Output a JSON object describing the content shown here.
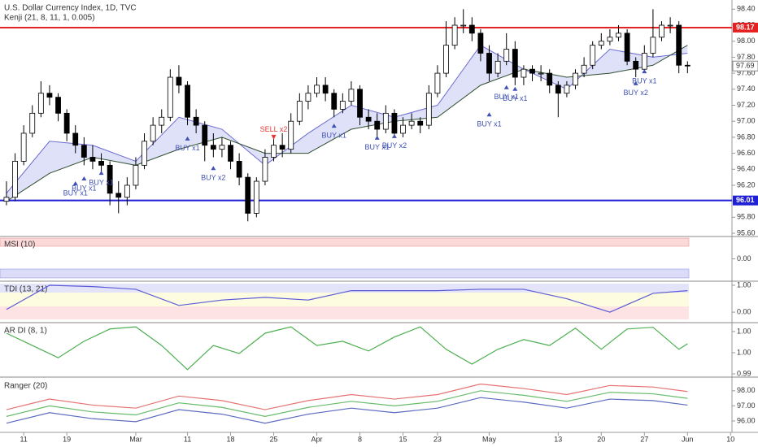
{
  "chart_data": {
    "type": "candlestick",
    "title": "U.S. Dollar Currency Index, 1D, TVC",
    "indicator": "Kenji (21, 8, 11, 1, 0.005)",
    "xlim": [
      -0.75,
      84.16
    ],
    "xticks": [
      {
        "value": 2,
        "label": "11"
      },
      {
        "value": 7,
        "label": "19"
      },
      {
        "value": 15,
        "label": "Mar"
      },
      {
        "value": 21,
        "label": "11"
      },
      {
        "value": 26,
        "label": "18"
      },
      {
        "value": 31,
        "label": "25"
      },
      {
        "value": 36,
        "label": "Apr"
      },
      {
        "value": 41,
        "label": "8"
      },
      {
        "value": 46,
        "label": "15"
      },
      {
        "value": 50,
        "label": "23"
      },
      {
        "value": 56,
        "label": "May"
      },
      {
        "value": 64,
        "label": "13"
      },
      {
        "value": 69,
        "label": "20"
      },
      {
        "value": 74,
        "label": "27"
      },
      {
        "value": 79,
        "label": "Jun"
      },
      {
        "value": 84,
        "label": "10"
      }
    ],
    "ylim": [
      95.57,
      98.515
    ],
    "yticks": [
      {
        "value": 95.6,
        "label": "95.60"
      },
      {
        "value": 95.8,
        "label": "95.80"
      },
      {
        "value": 96.0,
        "label": "96.00"
      },
      {
        "value": 96.2,
        "label": "96.20"
      },
      {
        "value": 96.4,
        "label": "96.40"
      },
      {
        "value": 96.6,
        "label": "96.60"
      },
      {
        "value": 96.8,
        "label": "96.80"
      },
      {
        "value": 97.0,
        "label": "97.00"
      },
      {
        "value": 97.2,
        "label": "97.20"
      },
      {
        "value": 97.4,
        "label": "97.40"
      },
      {
        "value": 97.6,
        "label": "97.60"
      },
      {
        "value": 97.8,
        "label": "97.80"
      },
      {
        "value": 98.0,
        "label": "98.00"
      },
      {
        "value": 98.2,
        "label": "98.20"
      },
      {
        "value": 98.4,
        "label": "98.40"
      }
    ],
    "candles": [
      [
        96.0,
        96.25,
        95.95,
        96.05
      ],
      [
        96.05,
        96.6,
        96.0,
        96.5
      ],
      [
        96.5,
        96.95,
        96.45,
        96.85
      ],
      [
        96.85,
        97.2,
        96.8,
        97.1
      ],
      [
        97.1,
        97.5,
        97.05,
        97.35
      ],
      [
        97.35,
        97.45,
        97.2,
        97.3
      ],
      [
        97.3,
        97.35,
        97.0,
        97.1
      ],
      [
        97.1,
        97.15,
        96.75,
        96.85
      ],
      [
        96.85,
        96.95,
        96.6,
        96.7
      ],
      [
        96.7,
        96.8,
        96.45,
        96.55
      ],
      [
        96.55,
        96.7,
        96.4,
        96.5
      ],
      [
        96.5,
        96.6,
        96.35,
        96.45
      ],
      [
        96.45,
        96.5,
        95.95,
        96.1
      ],
      [
        96.1,
        96.25,
        95.85,
        96.05
      ],
      [
        96.05,
        96.3,
        95.95,
        96.2
      ],
      [
        96.2,
        96.55,
        96.15,
        96.45
      ],
      [
        96.45,
        96.85,
        96.4,
        96.75
      ],
      [
        96.75,
        97.05,
        96.7,
        96.95
      ],
      [
        96.95,
        97.15,
        96.85,
        97.05
      ],
      [
        97.05,
        97.65,
        97.0,
        97.55
      ],
      [
        97.55,
        97.7,
        97.35,
        97.45
      ],
      [
        97.45,
        97.5,
        96.95,
        97.05
      ],
      [
        97.05,
        97.15,
        96.85,
        96.95
      ],
      [
        96.95,
        97.0,
        96.5,
        96.7
      ],
      [
        96.7,
        96.85,
        96.55,
        96.65
      ],
      [
        96.65,
        96.8,
        96.55,
        96.7
      ],
      [
        96.7,
        96.75,
        96.4,
        96.5
      ],
      [
        96.5,
        96.6,
        96.2,
        96.3
      ],
      [
        96.3,
        96.35,
        95.75,
        95.85
      ],
      [
        95.85,
        96.3,
        95.8,
        96.25
      ],
      [
        96.25,
        96.65,
        96.2,
        96.55
      ],
      [
        96.55,
        96.8,
        96.5,
        96.7
      ],
      [
        96.7,
        96.85,
        96.55,
        96.65
      ],
      [
        96.65,
        97.1,
        96.6,
        97.0
      ],
      [
        97.0,
        97.35,
        96.95,
        97.25
      ],
      [
        97.25,
        97.45,
        97.15,
        97.35
      ],
      [
        97.35,
        97.55,
        97.3,
        97.45
      ],
      [
        97.45,
        97.55,
        97.25,
        97.35
      ],
      [
        97.35,
        97.4,
        97.05,
        97.15
      ],
      [
        97.15,
        97.35,
        97.1,
        97.25
      ],
      [
        97.25,
        97.5,
        97.2,
        97.4
      ],
      [
        97.4,
        97.45,
        96.95,
        97.05
      ],
      [
        97.05,
        97.15,
        96.9,
        97.0
      ],
      [
        97.0,
        97.1,
        96.8,
        96.9
      ],
      [
        96.9,
        97.2,
        96.85,
        97.1
      ],
      [
        97.1,
        97.15,
        96.8,
        96.85
      ],
      [
        96.85,
        97.05,
        96.8,
        96.95
      ],
      [
        96.95,
        97.1,
        96.9,
        97.0
      ],
      [
        97.0,
        97.05,
        96.85,
        96.95
      ],
      [
        96.95,
        97.45,
        96.9,
        97.35
      ],
      [
        97.35,
        97.7,
        97.3,
        97.6
      ],
      [
        97.6,
        98.25,
        97.55,
        97.95
      ],
      [
        97.95,
        98.3,
        97.9,
        98.2
      ],
      [
        98.2,
        98.4,
        98.1,
        98.2
      ],
      [
        98.2,
        98.3,
        98.0,
        98.1
      ],
      [
        98.1,
        98.15,
        97.75,
        97.85
      ],
      [
        97.85,
        97.95,
        97.5,
        97.6
      ],
      [
        97.6,
        97.85,
        97.55,
        97.75
      ],
      [
        97.75,
        98.1,
        97.7,
        97.9
      ],
      [
        97.9,
        98.0,
        97.45,
        97.55
      ],
      [
        97.55,
        97.7,
        97.45,
        97.65
      ],
      [
        97.65,
        97.7,
        97.5,
        97.6
      ],
      [
        97.6,
        97.7,
        97.5,
        97.6
      ],
      [
        97.6,
        97.65,
        97.35,
        97.45
      ],
      [
        97.45,
        97.5,
        97.05,
        97.35
      ],
      [
        97.35,
        97.5,
        97.3,
        97.45
      ],
      [
        97.45,
        97.65,
        97.4,
        97.6
      ],
      [
        97.6,
        97.8,
        97.55,
        97.7
      ],
      [
        97.7,
        98.0,
        97.65,
        97.95
      ],
      [
        97.95,
        98.1,
        97.9,
        98.0
      ],
      [
        98.0,
        98.15,
        97.95,
        98.05
      ],
      [
        98.05,
        98.2,
        98.0,
        98.1
      ],
      [
        98.1,
        98.15,
        97.7,
        97.75
      ],
      [
        97.75,
        97.8,
        97.55,
        97.65
      ],
      [
        97.65,
        97.95,
        97.6,
        97.85
      ],
      [
        97.85,
        98.4,
        97.8,
        98.05
      ],
      [
        98.05,
        98.25,
        98.0,
        98.2
      ],
      [
        98.2,
        98.3,
        98.1,
        98.2
      ],
      [
        98.2,
        98.25,
        97.6,
        97.7
      ],
      [
        97.7,
        97.75,
        97.6,
        97.69
      ]
    ],
    "bands": {
      "x": [
        0,
        5,
        10,
        15,
        20,
        25,
        30,
        35,
        40,
        45,
        50,
        55,
        60,
        65,
        70,
        75,
        79
      ],
      "fast": [
        96.1,
        96.75,
        96.7,
        96.5,
        97.05,
        96.9,
        96.45,
        96.85,
        97.2,
        97.05,
        97.2,
        97.95,
        97.65,
        97.4,
        97.9,
        97.8,
        97.85
      ],
      "slow": [
        96.0,
        96.35,
        96.55,
        96.45,
        96.65,
        96.8,
        96.6,
        96.6,
        96.9,
        97.0,
        97.05,
        97.45,
        97.65,
        97.55,
        97.6,
        97.7,
        97.95
      ]
    },
    "levels": [
      {
        "value": 98.17,
        "color": "#e52222"
      },
      {
        "value": 96.01,
        "color": "#1f1fd6"
      }
    ],
    "last_price": 97.69,
    "signals": [
      {
        "x": 8,
        "y": 96.2,
        "label": "BUY x1"
      },
      {
        "x": 9,
        "y": 96.26,
        "label": "BUY x1"
      },
      {
        "x": 11,
        "y": 96.33,
        "label": "BUY x1"
      },
      {
        "x": 21,
        "y": 96.76,
        "label": "BUY x1"
      },
      {
        "x": 24,
        "y": 96.39,
        "label": "BUY x2"
      },
      {
        "x": 31,
        "y": 96.77,
        "label": "SELL x2"
      },
      {
        "x": 38,
        "y": 96.92,
        "label": "BUY x1"
      },
      {
        "x": 43,
        "y": 96.77,
        "label": "BUY x1"
      },
      {
        "x": 45,
        "y": 96.79,
        "label": "BUY x2"
      },
      {
        "x": 56,
        "y": 97.06,
        "label": "BUY x1"
      },
      {
        "x": 58,
        "y": 97.4,
        "label": "BUY x1"
      },
      {
        "x": 59,
        "y": 97.38,
        "label": "BUY x1"
      },
      {
        "x": 73,
        "y": 97.45,
        "label": "BUY x2"
      },
      {
        "x": 74,
        "y": 97.6,
        "label": "BUY x1"
      }
    ],
    "panes": [
      {
        "type": "zones",
        "title": "MSI (10)",
        "ylim": [
          -1,
          1
        ],
        "yticks": [
          {
            "value": 0,
            "label": "0.00"
          }
        ]
      },
      {
        "type": "line",
        "title": "TDI (13, 21)",
        "ylim": [
          -0.36,
          1.12
        ],
        "yticks": [
          {
            "value": 1,
            "label": "1.00"
          },
          {
            "value": 0,
            "label": "0.00"
          }
        ],
        "color": "#5b5bd6",
        "x": [
          0,
          5,
          10,
          15,
          20,
          25,
          30,
          35,
          40,
          45,
          50,
          55,
          60,
          65,
          70,
          75,
          79
        ],
        "values": [
          0.1,
          1.0,
          0.95,
          0.85,
          0.25,
          0.45,
          0.55,
          0.45,
          0.8,
          0.8,
          0.8,
          0.85,
          0.85,
          0.5,
          0.0,
          0.7,
          0.8
        ]
      },
      {
        "type": "line",
        "title": "AR DI (8, 1)",
        "ylim": [
          0.99462,
          1.0069
        ],
        "yticks": [
          {
            "value": 1.005,
            "label": "1.00"
          },
          {
            "value": 1.0,
            "label": "1.00"
          },
          {
            "value": 0.995,
            "label": "0.99"
          }
        ],
        "color": "#4caf50",
        "x": [
          0,
          3,
          6,
          9,
          12,
          15,
          18,
          21,
          24,
          27,
          30,
          33,
          36,
          39,
          42,
          45,
          48,
          51,
          54,
          57,
          60,
          63,
          66,
          69,
          72,
          75,
          78,
          79
        ],
        "values": [
          1.0046,
          1.0017,
          0.9988,
          1.0027,
          1.0056,
          1.0061,
          1.0017,
          0.996,
          1.0017,
          0.9998,
          1.0046,
          1.0061,
          1.0017,
          1.0027,
          1.0004,
          1.0037,
          1.0061,
          1.0008,
          0.9973,
          1.0008,
          1.0031,
          1.0017,
          1.0058,
          1.0008,
          1.0056,
          1.006,
          1.0008,
          1.0021
        ]
      },
      {
        "type": "multiline",
        "title": "Ranger (20)",
        "ylim": [
          95.35,
          98.8
        ],
        "yticks": [
          {
            "value": 98,
            "label": "98.00"
          },
          {
            "value": 97,
            "label": "97.00"
          },
          {
            "value": 96,
            "label": "96.00"
          }
        ],
        "x": [
          0,
          5,
          10,
          15,
          20,
          25,
          30,
          35,
          40,
          45,
          50,
          55,
          60,
          65,
          70,
          75,
          79
        ],
        "series": [
          {
            "color": "#e57373",
            "values": [
              96.75,
              97.45,
              97.05,
              96.85,
              97.65,
              97.35,
              96.75,
              97.35,
              97.75,
              97.45,
              97.75,
              98.45,
              98.15,
              97.75,
              98.35,
              98.25,
              97.95
            ]
          },
          {
            "color": "#66bb6a",
            "values": [
              96.3,
              97.0,
              96.6,
              96.4,
              97.2,
              96.9,
              96.3,
              96.9,
              97.3,
              97.0,
              97.3,
              98.0,
              97.7,
              97.3,
              97.9,
              97.8,
              97.5
            ]
          },
          {
            "color": "#5c6bc0",
            "values": [
              95.85,
              96.55,
              96.15,
              95.95,
              96.75,
              96.45,
              95.85,
              96.45,
              96.85,
              96.55,
              96.85,
              97.55,
              97.25,
              96.85,
              97.45,
              97.35,
              97.05
            ]
          }
        ]
      }
    ]
  }
}
